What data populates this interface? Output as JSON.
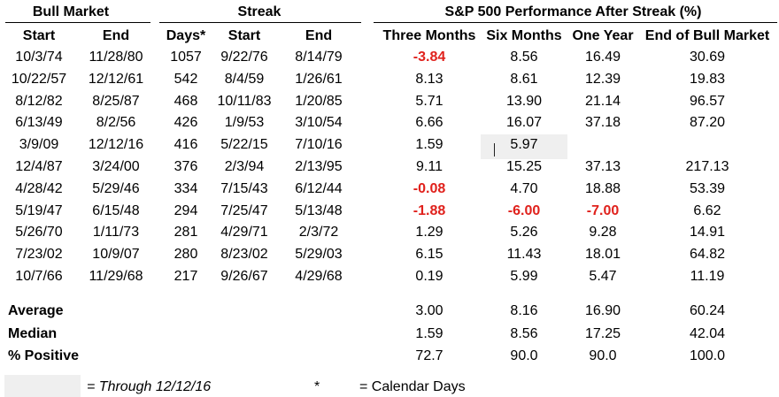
{
  "groups": {
    "bull_market": "Bull Market",
    "streak": "Streak",
    "performance": "S&P 500 Performance After Streak (%)"
  },
  "headers": [
    "Start",
    "End",
    "Days*",
    "Start",
    "End",
    "Three Months",
    "Six Months",
    "One Year",
    "End of Bull Market"
  ],
  "rows": [
    {
      "bull_start": "10/3/74",
      "bull_end": "11/28/80",
      "days": "1057",
      "streak_start": "9/22/76",
      "streak_end": "8/14/79",
      "three_months": "-3.84",
      "six_months": "8.56",
      "one_year": "16.49",
      "end_bull": "30.69"
    },
    {
      "bull_start": "10/22/57",
      "bull_end": "12/12/61",
      "days": "542",
      "streak_start": "8/4/59",
      "streak_end": "1/26/61",
      "three_months": "8.13",
      "six_months": "8.61",
      "one_year": "12.39",
      "end_bull": "19.83"
    },
    {
      "bull_start": "8/12/82",
      "bull_end": "8/25/87",
      "days": "468",
      "streak_start": "10/11/83",
      "streak_end": "1/20/85",
      "three_months": "5.71",
      "six_months": "13.90",
      "one_year": "21.14",
      "end_bull": "96.57"
    },
    {
      "bull_start": "6/13/49",
      "bull_end": "8/2/56",
      "days": "426",
      "streak_start": "1/9/53",
      "streak_end": "3/10/54",
      "three_months": "6.66",
      "six_months": "16.07",
      "one_year": "37.18",
      "end_bull": "87.20"
    },
    {
      "bull_start": "3/9/09",
      "bull_end": "12/12/16",
      "days": "416",
      "streak_start": "5/22/15",
      "streak_end": "7/10/16",
      "three_months": "1.59",
      "six_months": "5.97",
      "one_year": "",
      "end_bull": ""
    },
    {
      "bull_start": "12/4/87",
      "bull_end": "3/24/00",
      "days": "376",
      "streak_start": "2/3/94",
      "streak_end": "2/13/95",
      "three_months": "9.11",
      "six_months": "15.25",
      "one_year": "37.13",
      "end_bull": "217.13"
    },
    {
      "bull_start": "4/28/42",
      "bull_end": "5/29/46",
      "days": "334",
      "streak_start": "7/15/43",
      "streak_end": "6/12/44",
      "three_months": "-0.08",
      "six_months": "4.70",
      "one_year": "18.88",
      "end_bull": "53.39"
    },
    {
      "bull_start": "5/19/47",
      "bull_end": "6/15/48",
      "days": "294",
      "streak_start": "7/25/47",
      "streak_end": "5/13/48",
      "three_months": "-1.88",
      "six_months": "-6.00",
      "one_year": "-7.00",
      "end_bull": "6.62"
    },
    {
      "bull_start": "5/26/70",
      "bull_end": "1/11/73",
      "days": "281",
      "streak_start": "4/29/71",
      "streak_end": "2/3/72",
      "three_months": "1.29",
      "six_months": "5.26",
      "one_year": "9.28",
      "end_bull": "14.91"
    },
    {
      "bull_start": "7/23/02",
      "bull_end": "10/9/07",
      "days": "280",
      "streak_start": "8/23/02",
      "streak_end": "5/29/03",
      "three_months": "6.15",
      "six_months": "11.43",
      "one_year": "18.01",
      "end_bull": "64.82"
    },
    {
      "bull_start": "10/7/66",
      "bull_end": "11/29/68",
      "days": "217",
      "streak_start": "9/26/67",
      "streak_end": "4/29/68",
      "three_months": "0.19",
      "six_months": "5.99",
      "one_year": "5.47",
      "end_bull": "11.19"
    }
  ],
  "summary": [
    {
      "label": "Average",
      "three_months": "3.00",
      "six_months": "8.16",
      "one_year": "16.90",
      "end_bull": "60.24"
    },
    {
      "label": "Median",
      "three_months": "1.59",
      "six_months": "8.56",
      "one_year": "17.25",
      "end_bull": "42.04"
    },
    {
      "label": "% Positive",
      "three_months": "72.7",
      "six_months": "90.0",
      "one_year": "90.0",
      "end_bull": "100.0"
    }
  ],
  "legend": {
    "through_text": "= Through 12/12/16",
    "asterisk": "*",
    "calendar_text": "= Calendar Days"
  },
  "colors": {
    "negative": "#e0211c",
    "shade": "#efefef"
  }
}
